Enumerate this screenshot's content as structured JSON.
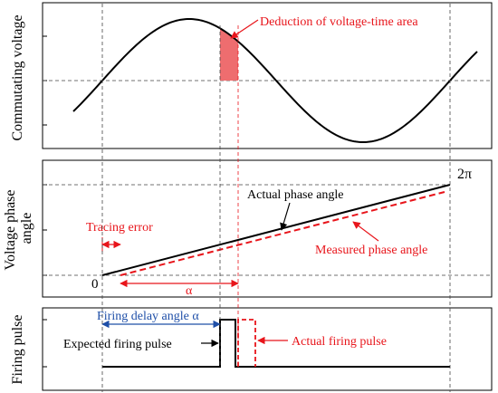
{
  "panels": {
    "voltage": {
      "ylabel": "Commutating voltage",
      "annotation": "Deduction of voltage-time area"
    },
    "phase": {
      "ylabel": "Voltage phase angle",
      "label_two_pi": "2π",
      "label_zero": "0",
      "actual_label": "Actual phase angle",
      "measured_label": "Measured phase angle",
      "tracing_error_label": "Tracing error",
      "alpha_label": "α"
    },
    "pulse": {
      "ylabel": "Firing pulse",
      "delay_label": "Firing delay angle α",
      "expected_label": "Expected firing pulse",
      "actual_label": "Actual firing pulse"
    }
  },
  "colors": {
    "red": "#e8151b",
    "blue": "#1f4fa8",
    "shade": "#ee6d6f",
    "black": "#000000",
    "grid": "#444444"
  }
}
